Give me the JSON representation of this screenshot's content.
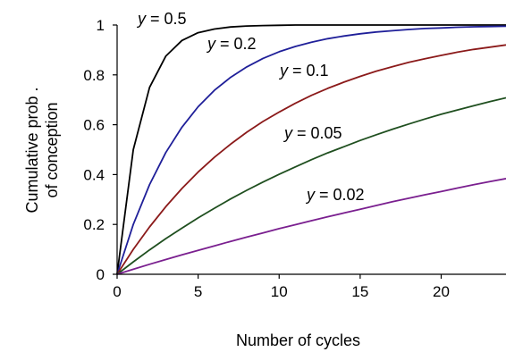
{
  "chart_data": {
    "type": "line",
    "title": "",
    "xlabel": "Number of cycles",
    "ylabel": [
      "Cumulative prob .",
      "of conception"
    ],
    "xlim": [
      0,
      24
    ],
    "ylim": [
      0,
      1
    ],
    "xticks": [
      "0",
      "5",
      "10",
      "15",
      "20"
    ],
    "yticks": [
      "0",
      "0.2",
      "0.4",
      "0.6",
      "0.8",
      "1"
    ],
    "grid": false,
    "legend": "none",
    "x": [
      0,
      1,
      2,
      3,
      4,
      5,
      6,
      7,
      8,
      9,
      10,
      11,
      12,
      13,
      14,
      15,
      16,
      17,
      18,
      19,
      20,
      21,
      22,
      23,
      24
    ],
    "series": [
      {
        "name": "y = 0.5",
        "color": "#000000",
        "label_var": "y",
        "label_rest": " = 0.5",
        "values": [
          0,
          0.5,
          0.75,
          0.875,
          0.938,
          0.969,
          0.984,
          0.992,
          0.996,
          0.998,
          0.999,
          1,
          1,
          1,
          1,
          1,
          1,
          1,
          1,
          1,
          1,
          1,
          1,
          1,
          1
        ]
      },
      {
        "name": "y = 0.2",
        "color": "#1f1f99",
        "label_var": "y",
        "label_rest": " = 0.2",
        "values": [
          0,
          0.2,
          0.36,
          0.488,
          0.59,
          0.672,
          0.738,
          0.79,
          0.832,
          0.866,
          0.893,
          0.914,
          0.931,
          0.945,
          0.956,
          0.965,
          0.972,
          0.977,
          0.982,
          0.986,
          0.988,
          0.991,
          0.993,
          0.994,
          0.995
        ]
      },
      {
        "name": "y = 0.1",
        "color": "#8b1a1a",
        "label_var": "y",
        "label_rest": " = 0.1",
        "values": [
          0,
          0.1,
          0.19,
          0.271,
          0.344,
          0.41,
          0.469,
          0.522,
          0.57,
          0.613,
          0.651,
          0.686,
          0.718,
          0.746,
          0.771,
          0.794,
          0.815,
          0.833,
          0.85,
          0.865,
          0.878,
          0.891,
          0.902,
          0.911,
          0.92
        ]
      },
      {
        "name": "y = 0.05",
        "color": "#1f4f1f",
        "label_var": "y",
        "label_rest": " = 0.05",
        "values": [
          0,
          0.05,
          0.098,
          0.143,
          0.185,
          0.226,
          0.265,
          0.302,
          0.337,
          0.37,
          0.401,
          0.431,
          0.46,
          0.487,
          0.512,
          0.537,
          0.56,
          0.582,
          0.603,
          0.623,
          0.642,
          0.659,
          0.676,
          0.693,
          0.708
        ]
      },
      {
        "name": "y = 0.02",
        "color": "#7a1f8f",
        "label_var": "y",
        "label_rest": " = 0.02",
        "values": [
          0,
          0.02,
          0.04,
          0.059,
          0.078,
          0.096,
          0.114,
          0.132,
          0.149,
          0.166,
          0.183,
          0.199,
          0.215,
          0.231,
          0.246,
          0.261,
          0.276,
          0.291,
          0.305,
          0.319,
          0.332,
          0.346,
          0.359,
          0.372,
          0.384
        ]
      }
    ]
  }
}
